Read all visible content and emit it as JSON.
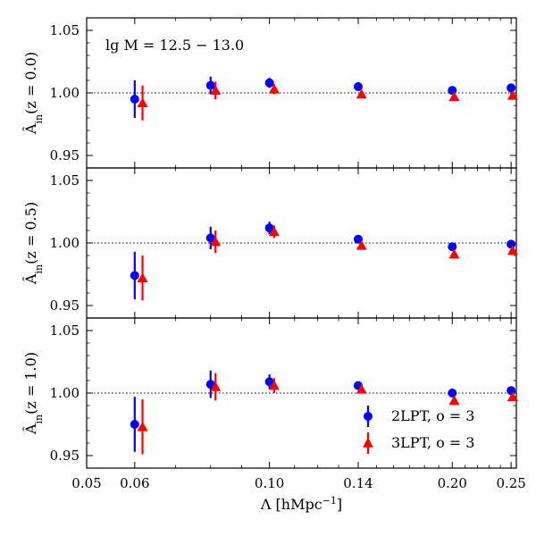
{
  "chart_data": {
    "type": "scatter",
    "x_scale": "log",
    "xlim": [
      0.05,
      0.255
    ],
    "x_ticks": [
      0.05,
      0.06,
      0.1,
      0.14,
      0.2,
      0.25
    ],
    "x_tick_labels": [
      "0.05",
      "0.06",
      "0.10",
      "0.14",
      "0.20",
      "0.25"
    ],
    "xlabel": "Λ [hMpc⁻¹]",
    "annotation": "lg M = 12.5 − 13.0",
    "legend_position": "lower-right",
    "legend": [
      {
        "label": "2LPT, o = 3",
        "color": "#0000ff",
        "marker": "circle"
      },
      {
        "label": "3LPT, o = 3",
        "color": "#ff0000",
        "marker": "triangle"
      }
    ],
    "panels": [
      {
        "ylabel": "Â_in(z = 0.0)",
        "ylim": [
          0.94,
          1.06
        ],
        "y_ticks": [
          0.95,
          1.0,
          1.05
        ],
        "y_tick_labels": [
          "0.95",
          "1.00",
          "1.05"
        ],
        "reference_line": 1.0,
        "series": [
          {
            "name": "2LPT, o = 3",
            "x": [
              0.06,
              0.08,
              0.1,
              0.14,
              0.2,
              0.25
            ],
            "y": [
              0.995,
              1.006,
              1.008,
              1.005,
              1.002,
              1.004
            ],
            "yerr": [
              0.015,
              0.007,
              0.004,
              0.002,
              0.002,
              0.002
            ]
          },
          {
            "name": "3LPT, o = 3",
            "x": [
              0.0618,
              0.0815,
              0.1018,
              0.1418,
              0.2015,
              0.2515
            ],
            "y": [
              0.992,
              1.002,
              1.003,
              0.999,
              0.997,
              0.998
            ],
            "yerr": [
              0.014,
              0.007,
              0.004,
              0.002,
              0.002,
              0.002
            ]
          }
        ]
      },
      {
        "ylabel": "Â_in(z = 0.5)",
        "ylim": [
          0.94,
          1.06
        ],
        "y_ticks": [
          0.95,
          1.0,
          1.05
        ],
        "y_tick_labels": [
          "0.95",
          "1.00",
          "1.05"
        ],
        "reference_line": 1.0,
        "series": [
          {
            "name": "2LPT, o = 3",
            "x": [
              0.06,
              0.08,
              0.1,
              0.14,
              0.2,
              0.25
            ],
            "y": [
              0.974,
              1.004,
              1.012,
              1.003,
              0.997,
              0.999
            ],
            "yerr": [
              0.019,
              0.009,
              0.005,
              0.003,
              0.002,
              0.002
            ]
          },
          {
            "name": "3LPT, o = 3",
            "x": [
              0.0618,
              0.0815,
              0.1018,
              0.1418,
              0.2015,
              0.2515
            ],
            "y": [
              0.972,
              1.001,
              1.009,
              0.998,
              0.991,
              0.994
            ],
            "yerr": [
              0.018,
              0.009,
              0.005,
              0.003,
              0.002,
              0.002
            ]
          }
        ]
      },
      {
        "ylabel": "Â_in(z = 1.0)",
        "ylim": [
          0.94,
          1.06
        ],
        "y_ticks": [
          0.95,
          1.0,
          1.05
        ],
        "y_tick_labels": [
          "0.95",
          "1.00",
          "1.05"
        ],
        "reference_line": 1.0,
        "series": [
          {
            "name": "2LPT, o = 3",
            "x": [
              0.06,
              0.08,
              0.1,
              0.14,
              0.2,
              0.25
            ],
            "y": [
              0.975,
              1.007,
              1.009,
              1.006,
              1.0,
              1.002
            ],
            "yerr": [
              0.022,
              0.011,
              0.006,
              0.003,
              0.002,
              0.002
            ]
          },
          {
            "name": "3LPT, o = 3",
            "x": [
              0.0618,
              0.0815,
              0.1018,
              0.1418,
              0.2015,
              0.2515
            ],
            "y": [
              0.973,
              1.005,
              1.006,
              1.003,
              0.994,
              0.997
            ],
            "yerr": [
              0.022,
              0.011,
              0.006,
              0.003,
              0.002,
              0.002
            ]
          }
        ]
      }
    ]
  }
}
